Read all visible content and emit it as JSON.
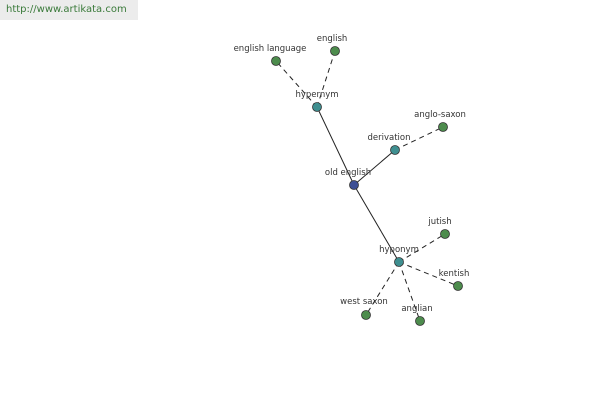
{
  "header": {
    "url": "http://www.artikata.com"
  },
  "nodes": [
    {
      "label": "old english"
    },
    {
      "label": "hypernym"
    },
    {
      "label": "derivation"
    },
    {
      "label": "hyponym"
    },
    {
      "label": "english language"
    },
    {
      "label": "english"
    },
    {
      "label": "anglo-saxon"
    },
    {
      "label": "jutish"
    },
    {
      "label": "kentish"
    },
    {
      "label": "anglian"
    },
    {
      "label": "west saxon"
    }
  ]
}
